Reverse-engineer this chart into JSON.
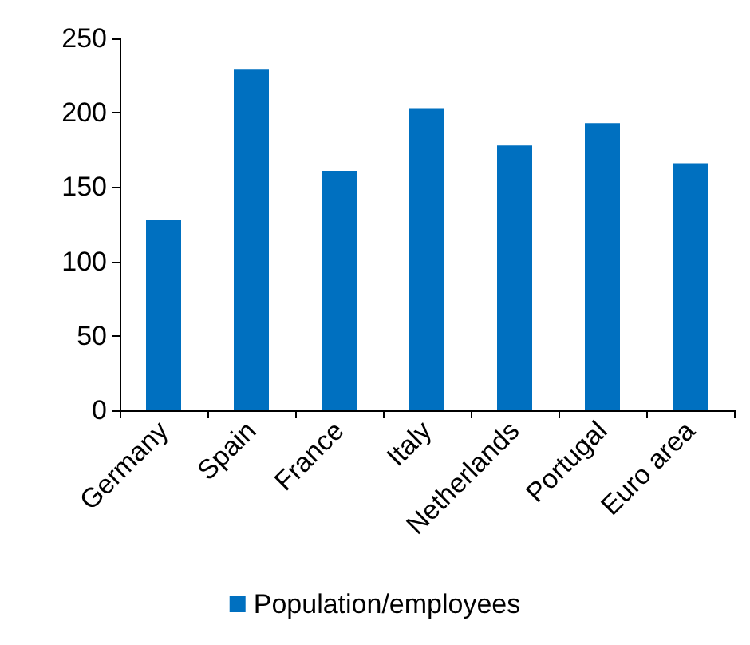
{
  "chart_data": {
    "type": "bar",
    "categories": [
      "Germany",
      "Spain",
      "France",
      "Italy",
      "Netherlands",
      "Portugal",
      "Euro area"
    ],
    "series": [
      {
        "name": "Population/employees",
        "color": "#0070c0",
        "values": [
          128,
          229,
          161,
          203,
          178,
          193,
          166
        ]
      }
    ],
    "ylim": [
      0,
      250
    ],
    "yticks": [
      0,
      50,
      100,
      150,
      200,
      250
    ],
    "grid": false,
    "legend": "bottom"
  }
}
